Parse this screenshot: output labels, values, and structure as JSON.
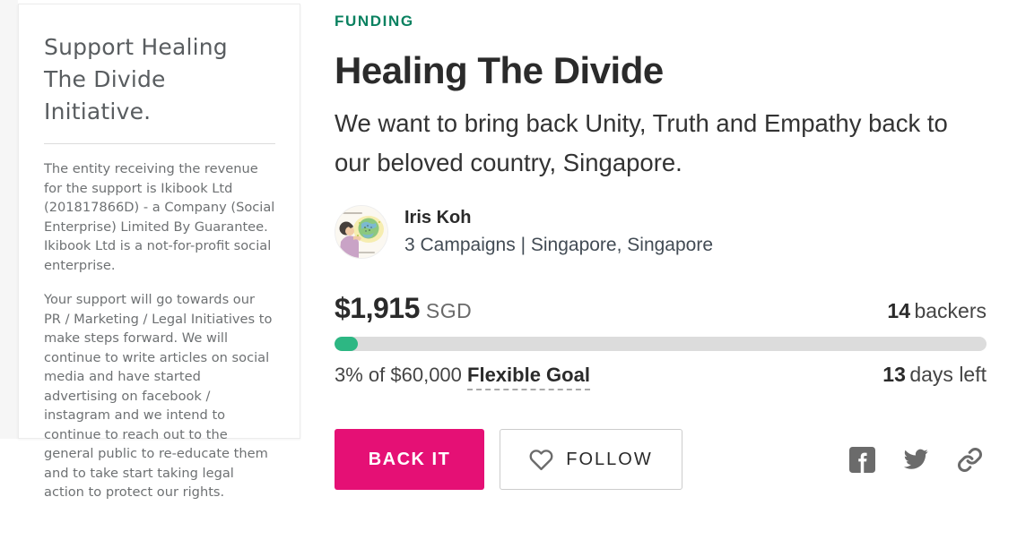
{
  "sidebar": {
    "title": "Support Healing The Divide Initiative.",
    "paragraphs": [
      "The entity receiving the revenue for the support is Ikibook Ltd (201817866D) - a Company (Social Enterprise) Limited By Guarantee. Ikibook Ltd is a not-for-profit social enterprise.",
      "Your support will go towards our PR / Marketing / Legal Initiatives to make steps forward. We will continue to write articles on social media and have started advertising on facebook / instagram and we intend to continue to reach out to the general public to re-educate them and to take start taking legal action to protect our rights."
    ]
  },
  "main": {
    "category": "FUNDING",
    "title": "Healing The Divide",
    "subtitle": "We want to bring back Unity, Truth and Empathy back to our beloved country, Singapore.",
    "creator": {
      "name": "Iris Koh",
      "meta": "3 Campaigns | Singapore, Singapore"
    },
    "funding": {
      "amount": "$1,915",
      "currency": "SGD",
      "backers_count": "14",
      "backers_label": "backers",
      "percent_of_goal": "3% of $60,000",
      "goal_type": "Flexible Goal",
      "days_count": "13",
      "days_label": "days left",
      "progress_percent": 3
    },
    "actions": {
      "back_label": "BACK IT",
      "follow_label": "FOLLOW"
    },
    "social_icons": [
      "facebook-icon",
      "twitter-icon",
      "copy-link-icon"
    ]
  },
  "colors": {
    "category_teal": "#0A8160",
    "progress_green": "#2DB783",
    "back_button_pink": "#E51075",
    "icon_gray": "#6B6B6B"
  }
}
